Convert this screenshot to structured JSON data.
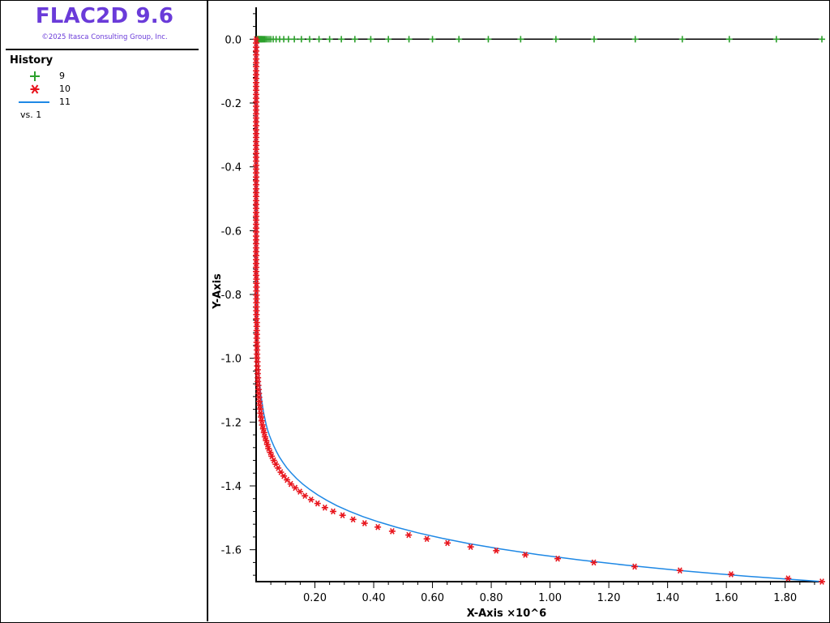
{
  "app": {
    "title": "FLAC2D 9.6",
    "copyright": "©2025 Itasca Consulting Group, Inc."
  },
  "legend": {
    "title": "History",
    "items": [
      {
        "label": "9",
        "symbol": "plus",
        "color": "#2ca02c"
      },
      {
        "label": "10",
        "symbol": "asterisk",
        "color": "#e8141c"
      },
      {
        "label": "11",
        "symbol": "line",
        "color": "#1e88e5"
      }
    ],
    "versus": "vs. 1"
  },
  "colors": {
    "brand": "#6a3bd9",
    "series_9": "#2ca02c",
    "series_10": "#e8141c",
    "series_11": "#1e88e5",
    "axis": "#000000"
  },
  "chart_data": {
    "type": "line",
    "xlabel": "X-Axis ×10^6",
    "ylabel": "Y-Axis",
    "xlim": [
      0,
      1.925
    ],
    "ylim": [
      -1.7,
      0.1
    ],
    "xticks": [
      "0.20",
      "0.40",
      "0.60",
      "0.80",
      "1.00",
      "1.20",
      "1.40",
      "1.60",
      "1.80"
    ],
    "yticks": [
      "0.0",
      "-0.2",
      "-0.4",
      "-0.6",
      "-0.8",
      "-1.0",
      "-1.2",
      "-1.4",
      "-1.6"
    ],
    "grid": false,
    "series": [
      {
        "name": "9",
        "marker": "plus",
        "color": "#2ca02c",
        "line_color": "#000000",
        "x": [
          0.002,
          0.004,
          0.006,
          0.008,
          0.01,
          0.012,
          0.014,
          0.016,
          0.018,
          0.02,
          0.023,
          0.026,
          0.029,
          0.033,
          0.038,
          0.044,
          0.05,
          0.058,
          0.068,
          0.08,
          0.094,
          0.11,
          0.13,
          0.154,
          0.182,
          0.214,
          0.25,
          0.29,
          0.336,
          0.39,
          0.45,
          0.52,
          0.6,
          0.69,
          0.79,
          0.9,
          1.02,
          1.15,
          1.29,
          1.45,
          1.61,
          1.77,
          1.925
        ],
        "y": [
          0,
          0,
          0,
          0,
          0,
          0,
          0,
          0,
          0,
          0,
          0,
          0,
          0,
          0,
          0,
          0,
          0,
          0,
          0,
          0,
          0,
          0,
          0,
          0,
          0,
          0,
          0,
          0,
          0,
          0,
          0,
          0,
          0,
          0,
          0,
          0,
          0,
          0,
          0,
          0,
          0,
          0,
          0
        ]
      },
      {
        "name": "10",
        "marker": "asterisk",
        "color": "#e8141c",
        "x": [
          0.0,
          0.0,
          0.0,
          0.0,
          0.0,
          0.0,
          0.0,
          0.0,
          0.0,
          0.0,
          0.0,
          0.0,
          0.0,
          0.0,
          0.0,
          0.0,
          0.0,
          0.0,
          0.0,
          0.0,
          0.0,
          0.0,
          0.0,
          0.0,
          0.0,
          0.0,
          0.0,
          0.0,
          0.0,
          0.0,
          0.0,
          0.0,
          0.0,
          0.0,
          0.0,
          0.0,
          0.0,
          0.0,
          0.0,
          0.0,
          0.0,
          0.0,
          0.0,
          0.0,
          0.0,
          0.0,
          0.0,
          0.0,
          0.0,
          0.0,
          0.0,
          0.0,
          0.0,
          0.0,
          0.0,
          0.0,
          0.0,
          0.0,
          0.0,
          0.0,
          0.0,
          0.001,
          0.001,
          0.001,
          0.001,
          0.001,
          0.001,
          0.001,
          0.001,
          0.001,
          0.001,
          0.001,
          0.002,
          0.002,
          0.002,
          0.002,
          0.002,
          0.002,
          0.003,
          0.003,
          0.003,
          0.003,
          0.004,
          0.004,
          0.005,
          0.005,
          0.006,
          0.006,
          0.007,
          0.008,
          0.009,
          0.01,
          0.011,
          0.012,
          0.014,
          0.015,
          0.017,
          0.019,
          0.021,
          0.024,
          0.027,
          0.03,
          0.034,
          0.038,
          0.042,
          0.048,
          0.053,
          0.06,
          0.067,
          0.075,
          0.084,
          0.094,
          0.105,
          0.118,
          0.133,
          0.149,
          0.166,
          0.187,
          0.209,
          0.234,
          0.262,
          0.294,
          0.33,
          0.369,
          0.414,
          0.463,
          0.519,
          0.581,
          0.651,
          0.73,
          0.817,
          0.916,
          1.026,
          1.149,
          1.288,
          1.442,
          1.616,
          1.81,
          1.925
        ],
        "y": [
          0.0,
          -0.012,
          -0.025,
          -0.037,
          -0.049,
          -0.062,
          -0.074,
          -0.086,
          -0.099,
          -0.111,
          -0.123,
          -0.136,
          -0.148,
          -0.16,
          -0.173,
          -0.185,
          -0.197,
          -0.21,
          -0.222,
          -0.234,
          -0.247,
          -0.259,
          -0.271,
          -0.284,
          -0.296,
          -0.308,
          -0.321,
          -0.333,
          -0.345,
          -0.358,
          -0.37,
          -0.382,
          -0.395,
          -0.407,
          -0.419,
          -0.432,
          -0.444,
          -0.456,
          -0.469,
          -0.481,
          -0.493,
          -0.506,
          -0.518,
          -0.53,
          -0.543,
          -0.555,
          -0.567,
          -0.58,
          -0.592,
          -0.604,
          -0.617,
          -0.629,
          -0.641,
          -0.654,
          -0.666,
          -0.678,
          -0.691,
          -0.703,
          -0.715,
          -0.728,
          -0.74,
          -0.752,
          -0.765,
          -0.777,
          -0.789,
          -0.802,
          -0.814,
          -0.826,
          -0.839,
          -0.851,
          -0.863,
          -0.876,
          -0.888,
          -0.9,
          -0.913,
          -0.925,
          -0.937,
          -0.95,
          -0.962,
          -0.974,
          -0.987,
          -0.999,
          -1.011,
          -1.024,
          -1.036,
          -1.048,
          -1.061,
          -1.073,
          -1.085,
          -1.098,
          -1.11,
          -1.122,
          -1.135,
          -1.147,
          -1.159,
          -1.172,
          -1.184,
          -1.196,
          -1.209,
          -1.221,
          -1.233,
          -1.246,
          -1.258,
          -1.27,
          -1.283,
          -1.295,
          -1.307,
          -1.32,
          -1.332,
          -1.344,
          -1.357,
          -1.369,
          -1.381,
          -1.394,
          -1.406,
          -1.418,
          -1.431,
          -1.443,
          -1.455,
          -1.468,
          -1.48,
          -1.492,
          -1.505,
          -1.517,
          -1.529,
          -1.542,
          -1.554,
          -1.566,
          -1.579,
          -1.591,
          -1.603,
          -1.616,
          -1.628,
          -1.64,
          -1.653,
          -1.665,
          -1.677,
          -1.69,
          -1.7
        ]
      },
      {
        "name": "11",
        "marker": "none",
        "color": "#1e88e5",
        "x": [
          0.0,
          0.0,
          0.0,
          0.0,
          0.0,
          0.0,
          0.0,
          0.0,
          0.0,
          0.0,
          0.0,
          0.0,
          0.0,
          0.0,
          0.0,
          0.0,
          0.0,
          0.0,
          0.0,
          0.0,
          0.0,
          0.0,
          0.0,
          0.0,
          0.0,
          0.0,
          0.0,
          0.0,
          0.0,
          0.0,
          0.0,
          0.0,
          0.0,
          0.0,
          0.0,
          0.0,
          0.0,
          0.0,
          0.0,
          0.0,
          0.0,
          0.001,
          0.001,
          0.001,
          0.001,
          0.001,
          0.001,
          0.001,
          0.001,
          0.002,
          0.002,
          0.002,
          0.002,
          0.003,
          0.003,
          0.004,
          0.004,
          0.005,
          0.006,
          0.006,
          0.007,
          0.009,
          0.01,
          0.011,
          0.013,
          0.015,
          0.017,
          0.02,
          0.023,
          0.026,
          0.03,
          0.034,
          0.039,
          0.045,
          0.052,
          0.06,
          0.069,
          0.079,
          0.091,
          0.104,
          0.12,
          0.138,
          0.158,
          0.182,
          0.209,
          0.24,
          0.275,
          0.316,
          0.363,
          0.417,
          0.479,
          0.55,
          0.632,
          0.726,
          0.834,
          0.958,
          1.1,
          1.263,
          1.451,
          1.666,
          1.914,
          1.925
        ],
        "y": [
          0.0,
          -0.017,
          -0.034,
          -0.051,
          -0.068,
          -0.085,
          -0.102,
          -0.119,
          -0.136,
          -0.153,
          -0.17,
          -0.187,
          -0.204,
          -0.221,
          -0.238,
          -0.255,
          -0.272,
          -0.289,
          -0.306,
          -0.323,
          -0.34,
          -0.357,
          -0.374,
          -0.391,
          -0.408,
          -0.425,
          -0.442,
          -0.459,
          -0.476,
          -0.493,
          -0.51,
          -0.527,
          -0.544,
          -0.561,
          -0.578,
          -0.595,
          -0.612,
          -0.629,
          -0.646,
          -0.663,
          -0.68,
          -0.697,
          -0.714,
          -0.731,
          -0.748,
          -0.765,
          -0.782,
          -0.799,
          -0.816,
          -0.833,
          -0.85,
          -0.867,
          -0.884,
          -0.901,
          -0.918,
          -0.935,
          -0.952,
          -0.969,
          -0.986,
          -1.003,
          -1.02,
          -1.037,
          -1.054,
          -1.071,
          -1.088,
          -1.105,
          -1.122,
          -1.139,
          -1.156,
          -1.173,
          -1.19,
          -1.207,
          -1.224,
          -1.241,
          -1.258,
          -1.275,
          -1.292,
          -1.309,
          -1.326,
          -1.343,
          -1.36,
          -1.377,
          -1.394,
          -1.411,
          -1.428,
          -1.445,
          -1.462,
          -1.479,
          -1.496,
          -1.513,
          -1.53,
          -1.547,
          -1.564,
          -1.581,
          -1.598,
          -1.615,
          -1.632,
          -1.649,
          -1.666,
          -1.683,
          -1.699,
          -1.7
        ]
      }
    ]
  }
}
